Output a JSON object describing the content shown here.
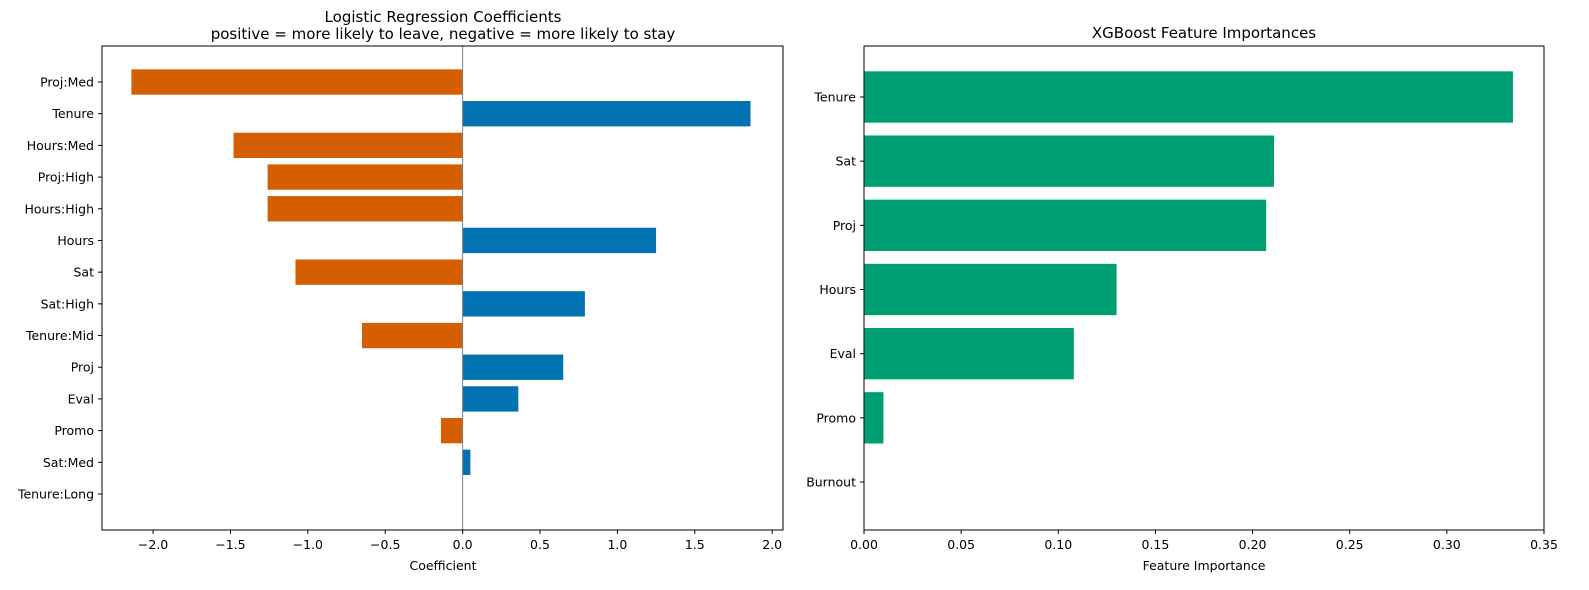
{
  "chart_data": [
    {
      "type": "bar",
      "orientation": "horizontal",
      "title": "Logistic Regression Coefficients",
      "subtitle": "positive = more likely to leave, negative = more likely to stay",
      "xlabel": "Coefficient",
      "ylabel": "",
      "xlim": [
        -2.33,
        2.07
      ],
      "xticks": [
        -2.0,
        -1.5,
        -1.0,
        -0.5,
        0.0,
        0.5,
        1.0,
        1.5,
        2.0
      ],
      "xtick_labels": [
        "−2.0",
        "−1.5",
        "−1.0",
        "−0.5",
        "0.0",
        "0.5",
        "1.0",
        "1.5",
        "2.0"
      ],
      "categories": [
        "Proj:Med",
        "Tenure",
        "Hours:Med",
        "Proj:High",
        "Hours:High",
        "Hours",
        "Sat",
        "Sat:High",
        "Tenure:Mid",
        "Proj",
        "Eval",
        "Promo",
        "Sat:Med",
        "Tenure:Long"
      ],
      "values": [
        -2.14,
        1.86,
        -1.48,
        -1.26,
        -1.26,
        1.25,
        -1.08,
        0.79,
        -0.65,
        0.65,
        0.36,
        -0.14,
        0.05,
        0.0
      ],
      "colors": {
        "positive": "#0072b2",
        "negative": "#d55e00"
      },
      "zero_line": true,
      "grid": false
    },
    {
      "type": "bar",
      "orientation": "horizontal",
      "title": "XGBoost Feature Importances",
      "xlabel": "Feature Importance",
      "ylabel": "",
      "xlim": [
        0.0,
        0.35
      ],
      "xticks": [
        0.0,
        0.05,
        0.1,
        0.15,
        0.2,
        0.25,
        0.3,
        0.35
      ],
      "xtick_labels": [
        "0.00",
        "0.05",
        "0.10",
        "0.15",
        "0.20",
        "0.25",
        "0.30",
        "0.35"
      ],
      "categories": [
        "Tenure",
        "Sat",
        "Proj",
        "Hours",
        "Eval",
        "Promo",
        "Burnout"
      ],
      "values": [
        0.334,
        0.211,
        0.207,
        0.13,
        0.108,
        0.01,
        0.0
      ],
      "colors": {
        "bar": "#009e73"
      },
      "grid": false
    }
  ]
}
